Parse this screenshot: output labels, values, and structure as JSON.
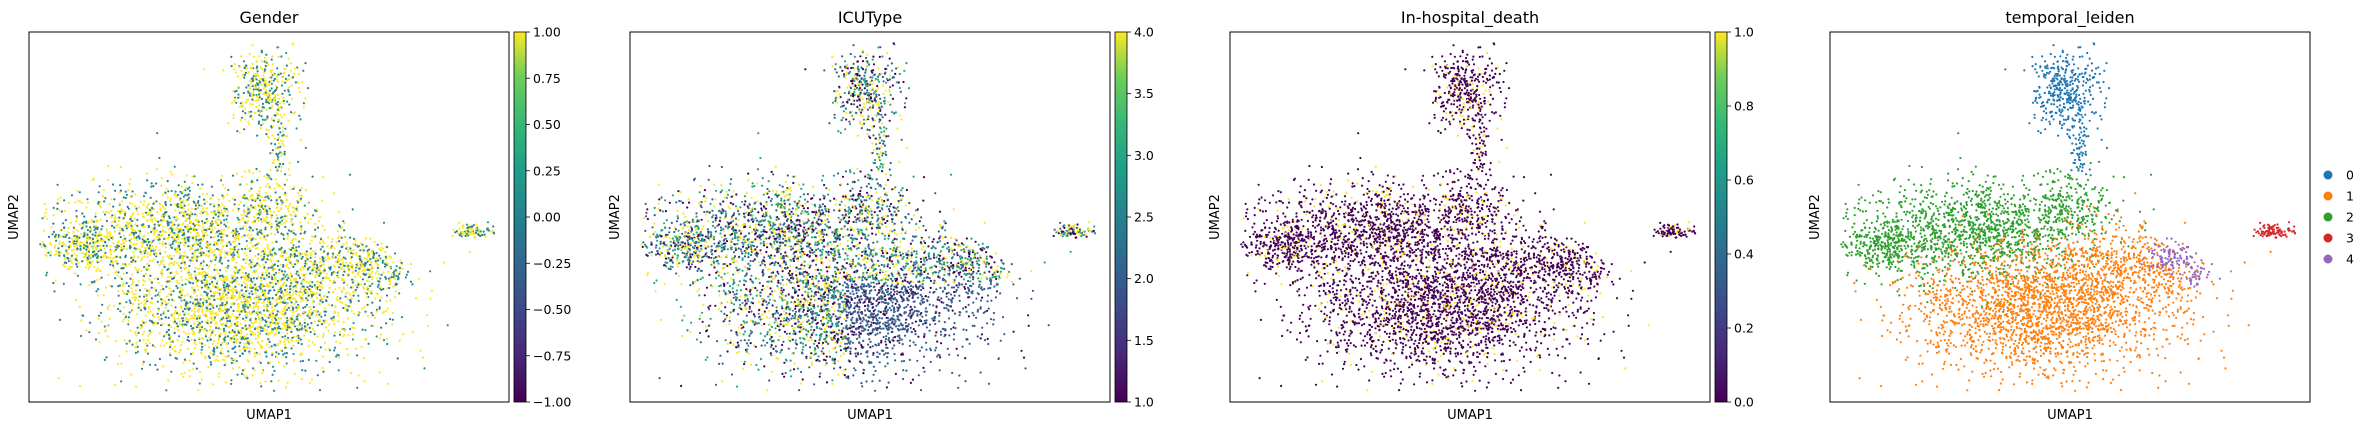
{
  "chart_data": [
    {
      "type": "scatter",
      "title": "Gender",
      "xlabel": "UMAP1",
      "ylabel": "UMAP2",
      "color_kind": "continuous",
      "colormap": "viridis",
      "colorbar": {
        "min": -1.0,
        "max": 1.0,
        "ticks": [
          "1.00",
          "0.75",
          "0.50",
          "0.25",
          "0.00",
          "−0.25",
          "−0.50",
          "−0.75",
          "−1.00"
        ]
      },
      "dominant_values": [
        -1.0,
        1.0
      ],
      "point_count_estimate": 11000
    },
    {
      "type": "scatter",
      "title": "ICUType",
      "xlabel": "UMAP1",
      "ylabel": "UMAP2",
      "color_kind": "continuous",
      "colormap": "viridis",
      "colorbar": {
        "min": 1.0,
        "max": 4.0,
        "ticks": [
          "4.0",
          "3.5",
          "3.0",
          "2.5",
          "2.0",
          "1.5",
          "1.0"
        ]
      },
      "dominant_values": [
        1.0,
        2.0,
        3.0,
        4.0
      ],
      "point_count_estimate": 11000
    },
    {
      "type": "scatter",
      "title": "In-hospital_death",
      "xlabel": "UMAP1",
      "ylabel": "UMAP2",
      "color_kind": "continuous",
      "colormap": "viridis",
      "colorbar": {
        "min": 0.0,
        "max": 1.0,
        "ticks": [
          "1.0",
          "0.8",
          "0.6",
          "0.4",
          "0.2",
          "0.0"
        ]
      },
      "dominant_values": [
        0.0,
        1.0
      ],
      "point_count_estimate": 11000
    },
    {
      "type": "scatter",
      "title": "temporal_leiden",
      "xlabel": "UMAP1",
      "ylabel": "UMAP2",
      "color_kind": "categorical",
      "legend": {
        "placement": "right",
        "entries": [
          {
            "label": "0",
            "color": "#1f77b4"
          },
          {
            "label": "1",
            "color": "#ff7f0e"
          },
          {
            "label": "2",
            "color": "#2ca02c"
          },
          {
            "label": "3",
            "color": "#d62728"
          },
          {
            "label": "4",
            "color": "#9467bd"
          }
        ]
      },
      "point_count_estimate": 11000
    }
  ]
}
